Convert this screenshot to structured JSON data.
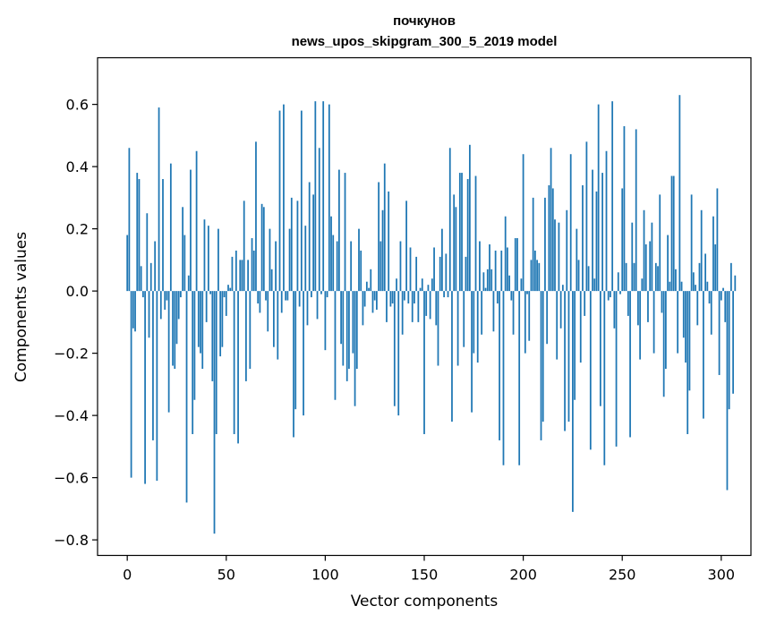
{
  "chart_data": {
    "type": "bar",
    "title": "почкунов",
    "subtitle": "news_upos_skipgram_300_5_2019 model",
    "xlabel": "Vector components",
    "ylabel": "Components values",
    "xlim": [
      -15,
      315
    ],
    "ylim": [
      -0.85,
      0.75
    ],
    "xticks": [
      0,
      50,
      100,
      150,
      200,
      250,
      300
    ],
    "xtick_labels": [
      "0",
      "50",
      "100",
      "150",
      "200",
      "250",
      "300"
    ],
    "yticks": [
      -0.8,
      -0.6,
      -0.4,
      -0.2,
      0.0,
      0.2,
      0.4,
      0.6
    ],
    "ytick_labels": [
      "−0.8",
      "−0.6",
      "−0.4",
      "−0.2",
      "0.0",
      "0.2",
      "0.4",
      "0.6"
    ],
    "grid": false,
    "bar_color": "#1f77b4",
    "values": [
      0.18,
      0.46,
      -0.6,
      -0.12,
      -0.13,
      0.38,
      0.36,
      0.08,
      -0.02,
      -0.62,
      0.25,
      -0.15,
      0.09,
      -0.48,
      0.16,
      -0.61,
      0.59,
      -0.09,
      0.36,
      -0.06,
      -0.03,
      -0.39,
      0.41,
      -0.24,
      -0.25,
      -0.17,
      -0.09,
      -0.02,
      0.27,
      0.18,
      -0.68,
      0.05,
      0.39,
      -0.46,
      -0.35,
      0.45,
      -0.18,
      -0.2,
      -0.25,
      0.23,
      -0.1,
      0.21,
      -0.01,
      -0.29,
      -0.78,
      -0.46,
      0.2,
      -0.21,
      -0.18,
      -0.02,
      -0.08,
      0.02,
      0.01,
      0.11,
      -0.46,
      0.13,
      -0.49,
      0.1,
      0.1,
      0.29,
      -0.29,
      0.1,
      -0.25,
      0.17,
      0.13,
      0.48,
      -0.04,
      -0.07,
      0.28,
      0.27,
      -0.03,
      -0.13,
      0.2,
      0.07,
      -0.18,
      0.16,
      -0.22,
      0.58,
      -0.07,
      0.6,
      -0.03,
      -0.03,
      0.2,
      0.3,
      -0.47,
      -0.38,
      0.29,
      -0.05,
      0.58,
      -0.4,
      0.21,
      -0.11,
      0.35,
      -0.02,
      0.31,
      0.61,
      -0.09,
      0.46,
      -0.01,
      0.61,
      -0.19,
      -0.02,
      0.6,
      0.24,
      0.18,
      -0.35,
      0.16,
      0.39,
      -0.17,
      -0.24,
      0.38,
      -0.29,
      -0.25,
      0.16,
      -0.2,
      -0.37,
      -0.25,
      0.2,
      0.13,
      -0.11,
      -0.05,
      0.03,
      0.01,
      0.07,
      -0.07,
      -0.03,
      -0.06,
      0.35,
      0.16,
      0.26,
      0.41,
      -0.1,
      0.32,
      -0.05,
      -0.04,
      -0.37,
      0.04,
      -0.4,
      0.16,
      -0.14,
      -0.03,
      0.29,
      -0.04,
      0.14,
      -0.1,
      -0.04,
      0.11,
      -0.1,
      0.01,
      0.04,
      -0.46,
      -0.08,
      0.02,
      -0.09,
      0.04,
      0.14,
      -0.11,
      -0.24,
      0.11,
      0.2,
      -0.02,
      0.12,
      -0.02,
      0.46,
      -0.42,
      0.31,
      0.27,
      -0.24,
      0.38,
      0.38,
      -0.18,
      0.11,
      0.36,
      0.47,
      -0.39,
      -0.2,
      0.37,
      -0.23,
      0.16,
      -0.14,
      0.06,
      0.01,
      0.07,
      0.15,
      0.07,
      -0.13,
      0.13,
      -0.04,
      -0.48,
      0.13,
      -0.56,
      0.24,
      0.14,
      0.05,
      -0.03,
      -0.14,
      0.17,
      0.17,
      -0.56,
      0.04,
      0.44,
      -0.2,
      -0.01,
      -0.16,
      0.1,
      0.3,
      0.13,
      0.1,
      0.09,
      -0.48,
      -0.42,
      0.3,
      -0.17,
      0.34,
      0.46,
      0.33,
      0.23,
      -0.22,
      0.22,
      -0.12,
      0.02,
      -0.45,
      0.26,
      -0.42,
      0.44,
      -0.71,
      -0.35,
      0.2,
      0.1,
      -0.23,
      0.34,
      -0.08,
      0.48,
      0.08,
      -0.51,
      0.39,
      0.04,
      0.32,
      0.6,
      -0.37,
      0.38,
      -0.56,
      0.45,
      -0.03,
      -0.02,
      0.61,
      -0.12,
      -0.5,
      0.06,
      -0.01,
      0.33,
      0.53,
      0.09,
      -0.08,
      -0.47,
      0.22,
      0.09,
      0.52,
      -0.11,
      -0.22,
      0.04,
      0.26,
      0.15,
      -0.1,
      0.16,
      0.22,
      -0.2,
      0.09,
      0.08,
      0.31,
      -0.07,
      -0.34,
      -0.25,
      0.18,
      0.03,
      0.37,
      0.37,
      0.07,
      -0.2,
      0.63,
      0.03,
      -0.15,
      -0.23,
      -0.46,
      -0.32,
      0.31,
      0.06,
      0.02,
      -0.11,
      0.09,
      0.26,
      -0.41,
      0.12,
      0.03,
      -0.04,
      -0.14,
      0.24,
      0.15,
      0.33,
      -0.27,
      -0.03,
      0.01,
      -0.1,
      -0.64,
      -0.38,
      0.09,
      -0.33,
      0.05
    ]
  }
}
